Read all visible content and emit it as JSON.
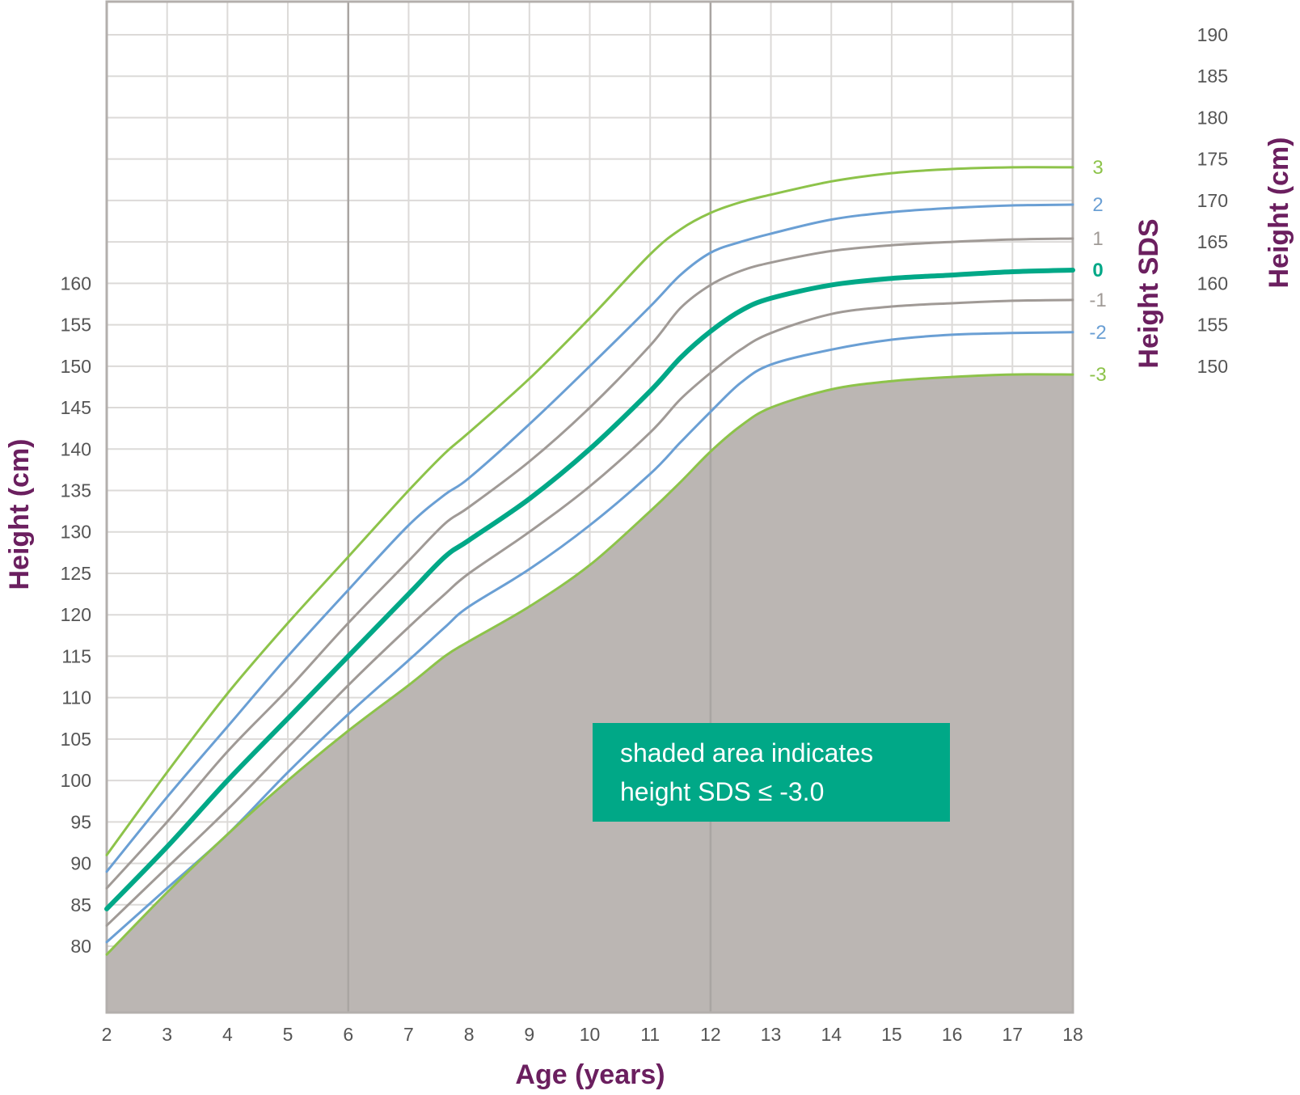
{
  "chart_data": {
    "type": "line",
    "xlabel": "Age (years)",
    "ylabel": "Height (cm)",
    "y2label": "Height SDS",
    "y3label": "Height (cm)",
    "xlim": [
      2,
      18
    ],
    "ylim": [
      72,
      194
    ],
    "x_ticks": [
      "2",
      "3",
      "4",
      "5",
      "6",
      "7",
      "8",
      "9",
      "10",
      "11",
      "12",
      "13",
      "14",
      "15",
      "16",
      "17",
      "18"
    ],
    "y_ticks_left": [
      "80",
      "85",
      "90",
      "95",
      "100",
      "105",
      "110",
      "115",
      "120",
      "125",
      "130",
      "135",
      "140",
      "145",
      "150",
      "155",
      "160"
    ],
    "y_ticks_right": [
      "150",
      "155",
      "160",
      "165",
      "170",
      "175",
      "180",
      "185",
      "190"
    ],
    "grid": true,
    "emphasized_x_gridlines": [
      6,
      12
    ],
    "shaded_region": "below -3 SDS curve",
    "annotation": {
      "line1": "shaded area indicates",
      "line2": "height SDS ≤ -3.0"
    },
    "colors": {
      "sds_3": "#8dc34a",
      "sds_2": "#6a9fd4",
      "sds_1": "#a09a96",
      "sds_0": "#00a887",
      "shade": "#bbb6b3",
      "title": "#6b1f5f",
      "annotation_bg": "#00a887"
    },
    "x": [
      2,
      3,
      4,
      5,
      6,
      7,
      7.6,
      8,
      9,
      10,
      11,
      11.5,
      12,
      12.5,
      13,
      14,
      15,
      16,
      17,
      18
    ],
    "series": [
      {
        "name": "3",
        "values": [
          91.0,
          101.0,
          110.5,
          119.0,
          127.0,
          135.0,
          139.5,
          142.0,
          148.5,
          155.8,
          163.5,
          166.5,
          168.5,
          169.8,
          170.7,
          172.3,
          173.3,
          173.8,
          174.0,
          174.0
        ]
      },
      {
        "name": "2",
        "values": [
          89.0,
          98.0,
          106.5,
          115.0,
          123.0,
          130.8,
          134.5,
          136.5,
          143.0,
          150.0,
          157.2,
          161.0,
          163.7,
          165.0,
          166.0,
          167.7,
          168.6,
          169.1,
          169.4,
          169.5
        ]
      },
      {
        "name": "1",
        "values": [
          87.0,
          95.0,
          103.5,
          111.0,
          119.0,
          126.5,
          131.0,
          133.0,
          138.5,
          145.0,
          152.5,
          157.0,
          159.8,
          161.5,
          162.5,
          163.9,
          164.6,
          165.0,
          165.3,
          165.4
        ]
      },
      {
        "name": "0",
        "values": [
          84.5,
          92.0,
          100.0,
          107.5,
          115.0,
          122.5,
          127.0,
          129.0,
          134.0,
          140.0,
          147.0,
          151.0,
          154.2,
          156.7,
          158.2,
          159.8,
          160.6,
          161.0,
          161.4,
          161.6
        ]
      },
      {
        "name": "-1",
        "values": [
          82.5,
          89.5,
          96.5,
          104.0,
          111.5,
          118.5,
          122.5,
          125.0,
          130.0,
          135.5,
          142.0,
          146.0,
          149.2,
          152.0,
          154.0,
          156.3,
          157.2,
          157.6,
          157.9,
          158.0
        ]
      },
      {
        "name": "-2",
        "values": [
          80.5,
          87.0,
          93.5,
          101.0,
          108.0,
          114.5,
          118.5,
          121.0,
          125.5,
          130.8,
          137.0,
          140.8,
          144.5,
          148.0,
          150.2,
          152.0,
          153.2,
          153.8,
          154.0,
          154.1
        ]
      },
      {
        "name": "-3",
        "values": [
          79.0,
          86.5,
          93.5,
          100.0,
          106.0,
          111.5,
          115.0,
          116.8,
          121.0,
          126.0,
          132.5,
          136.0,
          139.7,
          142.8,
          145.0,
          147.2,
          148.2,
          148.7,
          149.0,
          149.0
        ]
      }
    ]
  }
}
